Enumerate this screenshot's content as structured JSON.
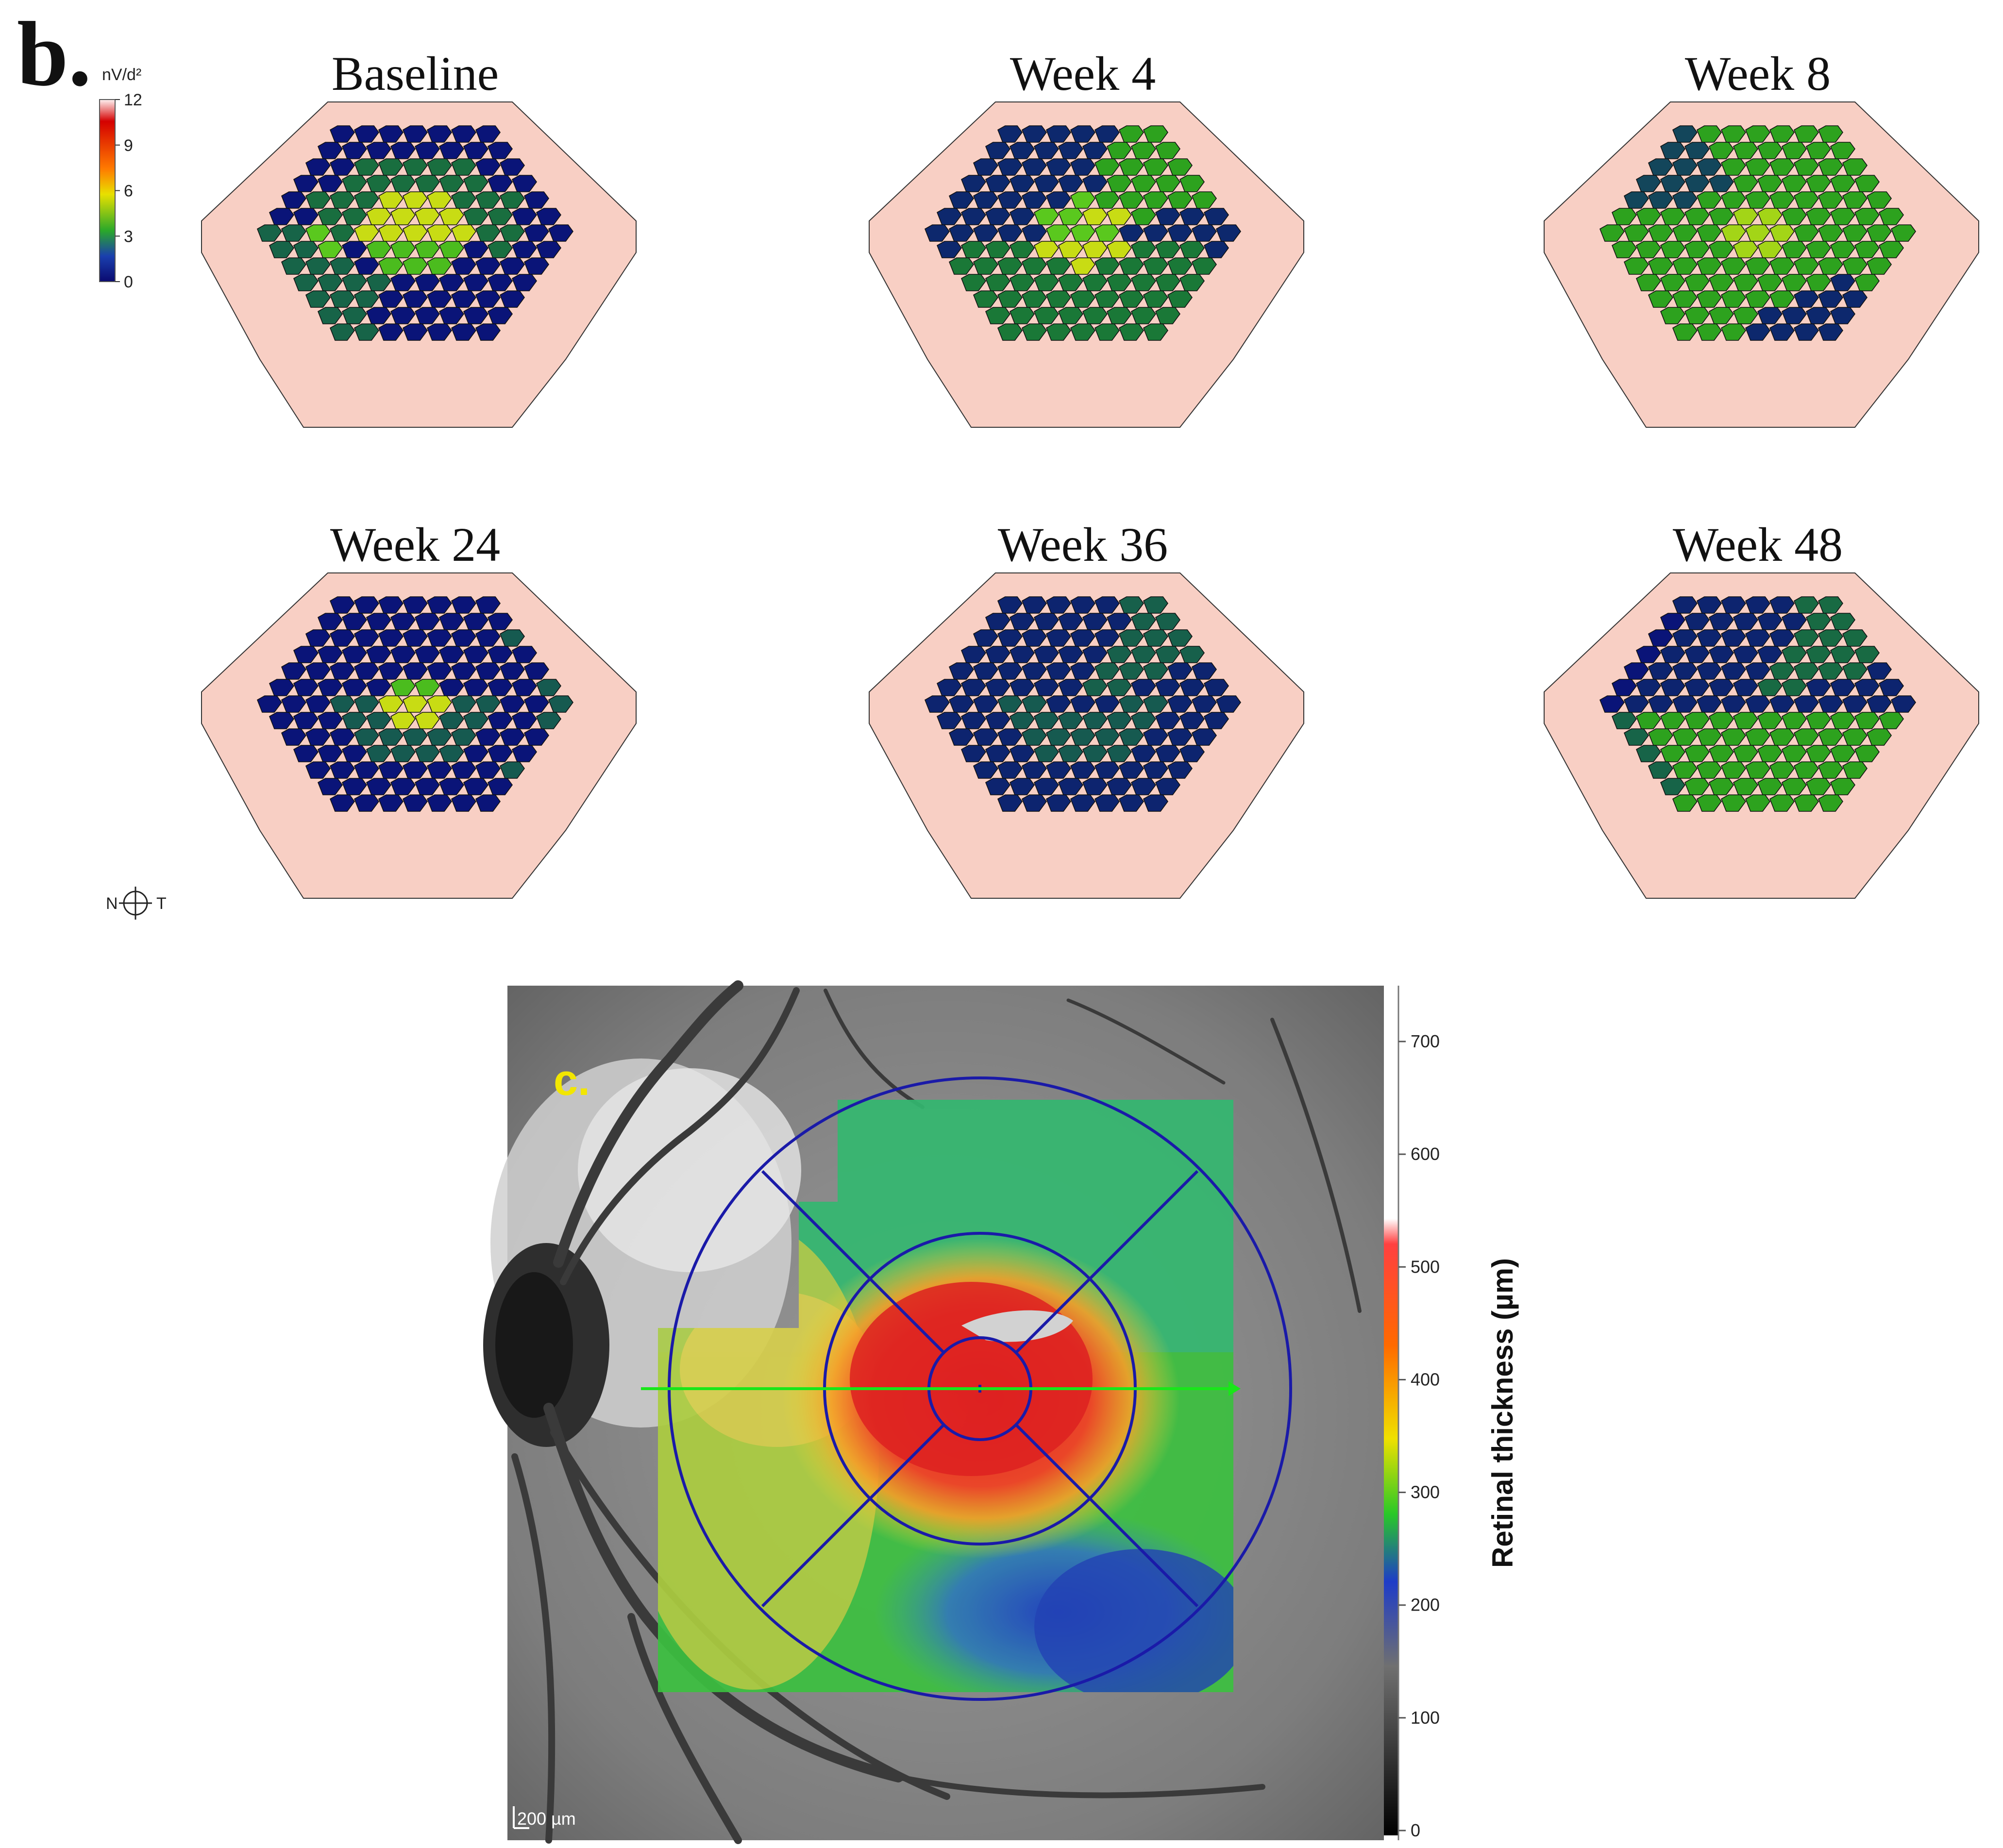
{
  "panel_b": {
    "label": "b.",
    "colorbar": {
      "unit": "nV/d²",
      "ticks": [
        "12",
        "9",
        "6",
        "3",
        "0"
      ],
      "colors": [
        "#fff2f2",
        "#d40000",
        "#ff7a00",
        "#e8e000",
        "#2aa82a",
        "#1a3fae",
        "#0a0a70"
      ]
    },
    "maps": [
      {
        "title": "Baseline",
        "profile": "baseline"
      },
      {
        "title": "Week 4",
        "profile": "week4"
      },
      {
        "title": "Week 8",
        "profile": "week8"
      },
      {
        "title": "Week 24",
        "profile": "week24"
      },
      {
        "title": "Week 36",
        "profile": "week36"
      },
      {
        "title": "Week 48",
        "profile": "week48"
      }
    ],
    "orientation": {
      "nasal": "N",
      "temporal": "T"
    }
  },
  "panel_c": {
    "label": "c.",
    "label_color": "#f2e600",
    "scale_bar": "200 µm",
    "colorbar": {
      "title": "Retinal thickness (µm)",
      "ticks": [
        "700",
        "600",
        "500",
        "400",
        "300",
        "200",
        "100",
        "0"
      ],
      "colors": [
        "#ffffff",
        "#ffffff",
        "#ff3030",
        "#ff8c00",
        "#f0e000",
        "#28c828",
        "#1e3cc8",
        "#808080",
        "#000000"
      ]
    },
    "grid_color": "#1a1aa8",
    "scan_line_color": "#19e619"
  }
}
